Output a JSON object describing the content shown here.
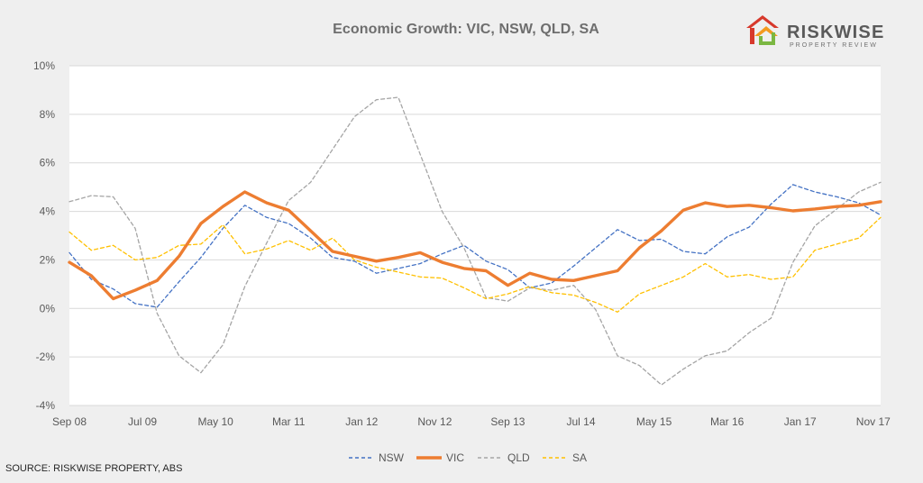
{
  "logo": {
    "name": "RISKWISE",
    "tagline": "PROPERTY REVIEW",
    "colors": {
      "red": "#d7392c",
      "orange": "#f39a1f",
      "green": "#7bb742",
      "gray": "#5a5a5a"
    }
  },
  "source": "SOURCE: RISKWISE PROPERTY, ABS",
  "chart_data": {
    "type": "line",
    "title": "Economic Growth: VIC, NSW, QLD, SA",
    "xlabel": "",
    "ylabel": "",
    "ylim": [
      -4,
      10
    ],
    "yticks": [
      -4,
      -2,
      0,
      2,
      4,
      6,
      8,
      10
    ],
    "ytick_labels": [
      "-4%",
      "-2%",
      "0%",
      "2%",
      "4%",
      "6%",
      "8%",
      "10%"
    ],
    "x_labels": [
      "Sep 08",
      "Jul 09",
      "May 10",
      "Mar 11",
      "Jan 12",
      "Nov 12",
      "Sep 13",
      "Jul 14",
      "May 15",
      "Mar 16",
      "Jan 17",
      "Nov 17"
    ],
    "x_label_index_step": 3.333,
    "legend_position": "bottom",
    "grid": "horizontal",
    "series": [
      {
        "name": "NSW",
        "color": "#4472c4",
        "style": "dashed",
        "values": [
          2.3,
          1.2,
          0.8,
          0.2,
          0.05,
          1.1,
          2.1,
          3.3,
          4.25,
          3.75,
          3.5,
          2.9,
          2.1,
          1.95,
          1.45,
          1.65,
          1.85,
          2.25,
          2.6,
          1.95,
          1.6,
          0.85,
          1.05,
          1.75,
          2.5,
          3.25,
          2.8,
          2.85,
          2.35,
          2.25,
          2.95,
          3.35,
          4.3,
          5.1,
          4.8,
          4.6,
          4.35,
          3.85
        ]
      },
      {
        "name": "VIC",
        "color": "#ed7d31",
        "style": "solid",
        "values": [
          1.9,
          1.35,
          0.4,
          0.75,
          1.15,
          2.15,
          3.5,
          4.2,
          4.8,
          4.35,
          4.05,
          3.2,
          2.35,
          2.15,
          1.95,
          2.1,
          2.3,
          1.9,
          1.65,
          1.55,
          0.95,
          1.45,
          1.2,
          1.15,
          1.35,
          1.55,
          2.5,
          3.2,
          4.05,
          4.35,
          4.2,
          4.25,
          4.15,
          4.02,
          4.1,
          4.2,
          4.25,
          4.4
        ]
      },
      {
        "name": "QLD",
        "color": "#a5a5a5",
        "style": "dashed",
        "values": [
          4.4,
          4.65,
          4.6,
          3.3,
          -0.2,
          -1.95,
          -2.65,
          -1.5,
          0.9,
          2.7,
          4.45,
          5.2,
          6.55,
          7.9,
          8.6,
          8.7,
          6.35,
          4.0,
          2.5,
          0.45,
          0.3,
          0.85,
          0.75,
          0.95,
          -0.05,
          -1.95,
          -2.35,
          -3.15,
          -2.5,
          -1.95,
          -1.75,
          -1.0,
          -0.4,
          1.9,
          3.4,
          4.1,
          4.8,
          5.2
        ]
      },
      {
        "name": "SA",
        "color": "#ffc000",
        "style": "dashed",
        "values": [
          3.15,
          2.4,
          2.6,
          2.0,
          2.1,
          2.6,
          2.65,
          3.45,
          2.25,
          2.45,
          2.8,
          2.4,
          2.9,
          2.0,
          1.7,
          1.5,
          1.3,
          1.25,
          0.85,
          0.4,
          0.6,
          0.9,
          0.65,
          0.55,
          0.25,
          -0.15,
          0.6,
          0.95,
          1.3,
          1.85,
          1.3,
          1.4,
          1.2,
          1.3,
          2.4,
          2.65,
          2.9,
          3.75
        ]
      }
    ]
  }
}
